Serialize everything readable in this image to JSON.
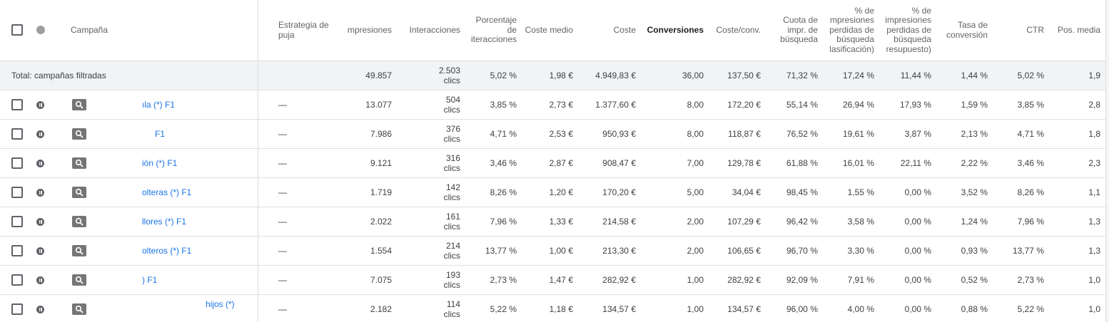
{
  "header": {
    "campaign": "Campaña",
    "bid_strategy": "Estrategia de puja",
    "impressions": "mpresiones",
    "interactions": "Interacciones",
    "interaction_rate": [
      "Porcentaje",
      "de",
      "iteracciones"
    ],
    "avg_cost": [
      "Coste",
      "medio"
    ],
    "cost": "Coste",
    "conversions": "Conversiones",
    "cost_conv": "Coste/conv.",
    "search_share": [
      "Cuota de",
      "impr. de",
      "búsqueda"
    ],
    "lost_rank": [
      "% de",
      "mpresiones",
      "perdidas de",
      "búsqueda",
      "lasificación)"
    ],
    "lost_budget": [
      "% de",
      "impresiones",
      "perdidas de",
      "búsqueda",
      "resupuesto)"
    ],
    "conv_rate": [
      "Tasa de",
      "conversión"
    ],
    "ctr": "CTR",
    "avg_pos": "Pos. media"
  },
  "total": {
    "label": "Total: campañas filtradas",
    "impressions": "49.857",
    "interactions": "2.503",
    "interactions_unit": "clics",
    "interaction_rate": "5,02 %",
    "avg_cost": "1,98 €",
    "cost": "4.949,83 €",
    "conversions": "36,00",
    "cost_conv": "137,50 €",
    "search_share": "71,32 %",
    "lost_rank": "17,24 %",
    "lost_budget": "11,44 %",
    "conv_rate": "1,44 %",
    "ctr": "5,02 %",
    "avg_pos": "1,9"
  },
  "rows": [
    {
      "name": "ıla (*) F1",
      "bid": "—",
      "impressions": "13.077",
      "interactions": "504",
      "unit": "clics",
      "interaction_rate": "3,85 %",
      "avg_cost": "2,73 €",
      "cost": "1.377,60 €",
      "conversions": "8,00",
      "cost_conv": "172,20 €",
      "search_share": "55,14 %",
      "lost_rank": "26,94 %",
      "lost_budget": "17,93 %",
      "conv_rate": "1,59 %",
      "ctr": "3,85 %",
      "avg_pos": "2,8"
    },
    {
      "name": "F1",
      "bid": "—",
      "impressions": "7.986",
      "interactions": "376",
      "unit": "clics",
      "interaction_rate": "4,71 %",
      "avg_cost": "2,53 €",
      "cost": "950,93 €",
      "conversions": "8,00",
      "cost_conv": "118,87 €",
      "search_share": "76,52 %",
      "lost_rank": "19,61 %",
      "lost_budget": "3,87 %",
      "conv_rate": "2,13 %",
      "ctr": "4,71 %",
      "avg_pos": "1,8"
    },
    {
      "name": "ión (*) F1",
      "bid": "—",
      "impressions": "9.121",
      "interactions": "316",
      "unit": "clics",
      "interaction_rate": "3,46 %",
      "avg_cost": "2,87 €",
      "cost": "908,47 €",
      "conversions": "7,00",
      "cost_conv": "129,78 €",
      "search_share": "61,88 %",
      "lost_rank": "16,01 %",
      "lost_budget": "22,11 %",
      "conv_rate": "2,22 %",
      "ctr": "3,46 %",
      "avg_pos": "2,3"
    },
    {
      "name": "olteras (*) F1",
      "bid": "—",
      "impressions": "1.719",
      "interactions": "142",
      "unit": "clics",
      "interaction_rate": "8,26 %",
      "avg_cost": "1,20 €",
      "cost": "170,20 €",
      "conversions": "5,00",
      "cost_conv": "34,04 €",
      "search_share": "98,45 %",
      "lost_rank": "1,55 %",
      "lost_budget": "0,00 %",
      "conv_rate": "3,52 %",
      "ctr": "8,26 %",
      "avg_pos": "1,1"
    },
    {
      "name": "llores (*) F1",
      "bid": "—",
      "impressions": "2.022",
      "interactions": "161",
      "unit": "clics",
      "interaction_rate": "7,96 %",
      "avg_cost": "1,33 €",
      "cost": "214,58 €",
      "conversions": "2,00",
      "cost_conv": "107,29 €",
      "search_share": "96,42 %",
      "lost_rank": "3,58 %",
      "lost_budget": "0,00 %",
      "conv_rate": "1,24 %",
      "ctr": "7,96 %",
      "avg_pos": "1,3"
    },
    {
      "name": "olteros (*) F1",
      "bid": "—",
      "impressions": "1.554",
      "interactions": "214",
      "unit": "clics",
      "interaction_rate": "13,77 %",
      "avg_cost": "1,00 €",
      "cost": "213,30 €",
      "conversions": "2,00",
      "cost_conv": "106,65 €",
      "search_share": "96,70 %",
      "lost_rank": "3,30 %",
      "lost_budget": "0,00 %",
      "conv_rate": "0,93 %",
      "ctr": "13,77 %",
      "avg_pos": "1,3"
    },
    {
      "name": ") F1",
      "bid": "—",
      "impressions": "7.075",
      "interactions": "193",
      "unit": "clics",
      "interaction_rate": "2,73 %",
      "avg_cost": "1,47 €",
      "cost": "282,92 €",
      "conversions": "1,00",
      "cost_conv": "282,92 €",
      "search_share": "92,09 %",
      "lost_rank": "7,91 %",
      "lost_budget": "0,00 %",
      "conv_rate": "0,52 %",
      "ctr": "2,73 %",
      "avg_pos": "1,0"
    },
    {
      "name": "hijos (*)",
      "bid": "—",
      "impressions": "2.182",
      "interactions": "114",
      "unit": "clics",
      "interaction_rate": "5,22 %",
      "avg_cost": "1,18 €",
      "cost": "134,57 €",
      "conversions": "1,00",
      "cost_conv": "134,57 €",
      "search_share": "96,00 %",
      "lost_rank": "4,00 %",
      "lost_budget": "0,00 %",
      "conv_rate": "0,88 %",
      "ctr": "5,22 %",
      "avg_pos": "1,0"
    }
  ]
}
